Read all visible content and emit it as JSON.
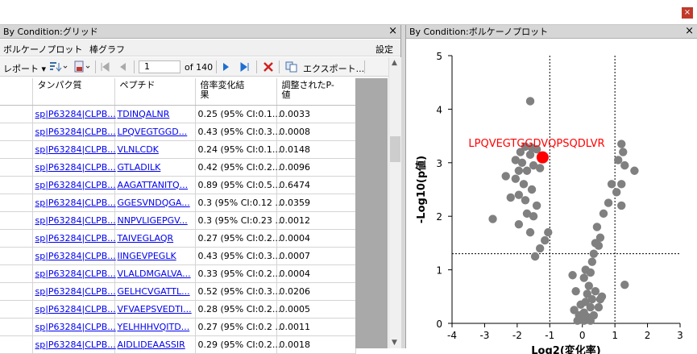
{
  "window": {
    "close_glyph": "×"
  },
  "grid_panel": {
    "title": "By Condition:グリッド",
    "close_glyph": "×",
    "menu": {
      "volcano": "ボルケーノプロット",
      "bar": "棒グラフ",
      "settings": "設定"
    },
    "toolbar": {
      "report": "レポート",
      "page_value": "1",
      "page_of": "of 140",
      "export": "エクスポート..."
    },
    "columns": [
      "タンパク質",
      "ペプチド",
      "倍率変化結果",
      "調整されたP-値"
    ],
    "column_lines": [
      [
        "タンパク質"
      ],
      [
        "ペプチド"
      ],
      [
        "倍率変化結",
        "果"
      ],
      [
        "調整されたP-",
        "値"
      ]
    ],
    "rows": [
      [
        "sp|P63284|CLPB...",
        "TDINQALNR",
        "0.25 (95% CI:0.1...",
        "0.0033"
      ],
      [
        "sp|P63284|CLPB...",
        "LPQVEGTGGD...",
        "0.43 (95% CI:0.3...",
        "0.0008"
      ],
      [
        "sp|P63284|CLPB...",
        "VLNLCDK",
        "0.24 (95% CI:0.1...",
        "0.0148"
      ],
      [
        "sp|P63284|CLPB...",
        "GTLADILK",
        "0.42 (95% CI:0.2...",
        "0.0096"
      ],
      [
        "sp|P63284|CLPB...",
        "AAGATTANITQ...",
        "0.89 (95% CI:0.5...",
        "0.6474"
      ],
      [
        "sp|P63284|CLPB...",
        "GGESVNDQGA...",
        "0.3 (95% CI:0.12 ...",
        "0.0359"
      ],
      [
        "sp|P63284|CLPB...",
        "NNPVLIGEPGV...",
        "0.3 (95% CI:0.23 ...",
        "0.0012"
      ],
      [
        "sp|P63284|CLPB...",
        "TAIVEGLAQR",
        "0.27 (95% CI:0.2...",
        "0.0004"
      ],
      [
        "sp|P63284|CLPB...",
        "IINGEVPEGLK",
        "0.43 (95% CI:0.3...",
        "0.0007"
      ],
      [
        "sp|P63284|CLPB...",
        "VLALDMGALVA...",
        "0.33 (95% CI:0.2...",
        "0.0004"
      ],
      [
        "sp|P63284|CLPB...",
        "GELHCVGATTL...",
        "0.52 (95% CI:0.3...",
        "0.0206"
      ],
      [
        "sp|P63284|CLPB...",
        "VFVAEPSVEDTI...",
        "0.28 (95% CI:0.2...",
        "0.0005"
      ],
      [
        "sp|P63284|CLPB...",
        "YELHHHVQITD...",
        "0.27 (95% CI:0.2 ...",
        "0.0011"
      ],
      [
        "sp|P63284|CLPB...",
        "AIDLIDEAASSIR",
        "0.29 (95% CI:0.2...",
        "0.0018"
      ]
    ]
  },
  "volcano_panel": {
    "title": "By Condition:ボルケーノプロット",
    "close_glyph": "×"
  },
  "chart_data": {
    "type": "scatter",
    "xlabel": "Log2(変化率)",
    "ylabel": "-Log10(p値)",
    "xlim": [
      -4,
      3
    ],
    "ylim": [
      0,
      5
    ],
    "xticks": [
      -4,
      -3,
      -2,
      -1,
      0,
      1,
      2,
      3
    ],
    "yticks": [
      0,
      1,
      2,
      3,
      4,
      5
    ],
    "thresholds": {
      "x": [
        -1,
        1
      ],
      "y": 1.3
    },
    "point_color": "#808080",
    "highlight_color": "#ff0000",
    "highlight": {
      "label": "LPQVEGTGGDVQPSQDLVR",
      "x": -1.22,
      "y": 3.1
    },
    "points": [
      [
        -1.6,
        4.15
      ],
      [
        -1.9,
        3.2
      ],
      [
        -1.75,
        3.3
      ],
      [
        -1.55,
        3.28
      ],
      [
        -1.4,
        3.25
      ],
      [
        -1.6,
        3.15
      ],
      [
        -2.05,
        3.05
      ],
      [
        -1.85,
        3.0
      ],
      [
        -1.5,
        2.95
      ],
      [
        -1.95,
        2.85
      ],
      [
        -1.7,
        2.85
      ],
      [
        -1.3,
        2.9
      ],
      [
        -2.35,
        2.75
      ],
      [
        -2.05,
        2.7
      ],
      [
        -1.8,
        2.6
      ],
      [
        -1.55,
        2.5
      ],
      [
        -1.95,
        2.4
      ],
      [
        -1.75,
        2.3
      ],
      [
        -1.4,
        2.2
      ],
      [
        -2.2,
        2.35
      ],
      [
        -1.5,
        2.0
      ],
      [
        -1.95,
        1.85
      ],
      [
        -1.6,
        1.7
      ],
      [
        -1.05,
        1.7
      ],
      [
        -1.15,
        1.55
      ],
      [
        -1.3,
        1.4
      ],
      [
        -1.45,
        1.25
      ],
      [
        -2.75,
        1.95
      ],
      [
        -1.7,
        2.05
      ],
      [
        1.2,
        3.35
      ],
      [
        1.25,
        3.2
      ],
      [
        1.1,
        3.05
      ],
      [
        1.6,
        2.85
      ],
      [
        1.3,
        2.95
      ],
      [
        0.9,
        2.6
      ],
      [
        1.2,
        2.6
      ],
      [
        1.05,
        2.45
      ],
      [
        0.8,
        2.25
      ],
      [
        1.2,
        2.2
      ],
      [
        0.65,
        2.05
      ],
      [
        0.45,
        1.8
      ],
      [
        0.55,
        1.6
      ],
      [
        0.4,
        1.5
      ],
      [
        0.5,
        1.45
      ],
      [
        0.35,
        1.3
      ],
      [
        0.3,
        1.15
      ],
      [
        0.1,
        1.0
      ],
      [
        1.3,
        0.72
      ],
      [
        0.25,
        0.95
      ],
      [
        0.05,
        0.85
      ],
      [
        0.2,
        0.7
      ],
      [
        -0.3,
        0.9
      ],
      [
        0.15,
        0.55
      ],
      [
        0.4,
        0.6
      ],
      [
        -0.2,
        0.6
      ],
      [
        0.55,
        0.45
      ],
      [
        0.3,
        0.45
      ],
      [
        0.1,
        0.4
      ],
      [
        -0.05,
        0.35
      ],
      [
        0.25,
        0.3
      ],
      [
        0.5,
        0.3
      ],
      [
        -0.25,
        0.25
      ],
      [
        0.05,
        0.2
      ],
      [
        -0.1,
        0.15
      ],
      [
        0.15,
        0.12
      ],
      [
        0.35,
        0.15
      ],
      [
        0.05,
        0.05
      ],
      [
        -0.15,
        0.05
      ],
      [
        0.25,
        0.05
      ],
      [
        0.6,
        0.5
      ]
    ]
  }
}
